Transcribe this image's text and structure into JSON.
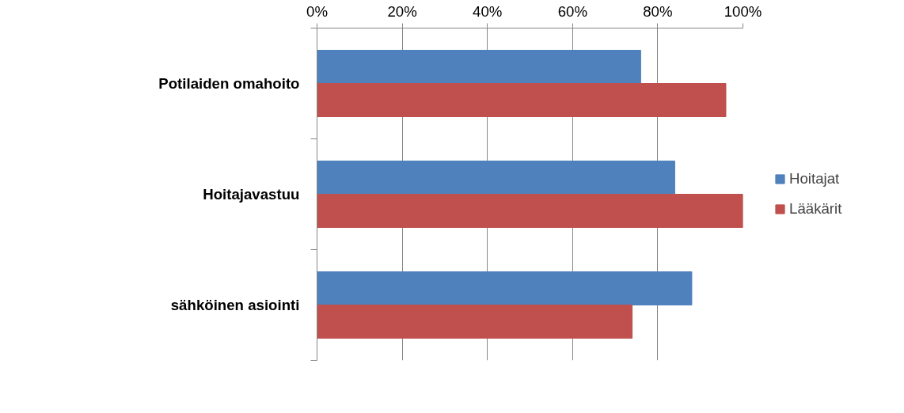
{
  "chart_data": {
    "type": "bar",
    "orientation": "horizontal",
    "categories": [
      "Potilaiden omahoito",
      "Hoitajavastuu",
      "sähköinen asiointi"
    ],
    "series": [
      {
        "name": "Hoitajat",
        "color": "#4f81bd",
        "values": [
          76,
          84,
          88
        ]
      },
      {
        "name": "Lääkärit",
        "color": "#c0504d",
        "values": [
          96,
          100,
          74
        ]
      }
    ],
    "xlim": [
      0,
      100
    ],
    "xticks": [
      {
        "value": 0,
        "label": "0%"
      },
      {
        "value": 20,
        "label": "20%"
      },
      {
        "value": 40,
        "label": "40%"
      },
      {
        "value": 60,
        "label": "60%"
      },
      {
        "value": 80,
        "label": "80%"
      },
      {
        "value": 100,
        "label": "100%"
      }
    ],
    "grid": "x",
    "legend": "right"
  }
}
